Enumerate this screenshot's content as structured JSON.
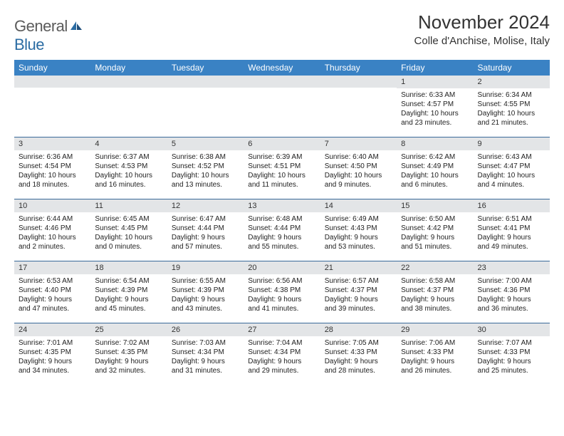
{
  "logo": {
    "general": "General",
    "blue": "Blue"
  },
  "title": "November 2024",
  "location": "Colle d'Anchise, Molise, Italy",
  "colors": {
    "header_bg": "#3a82c4",
    "daynum_bg": "#e3e5e7",
    "row_border": "#3a6a9a",
    "text": "#222222",
    "logo_gray": "#5b5b5b",
    "logo_blue": "#2b6ca3"
  },
  "weekdays": [
    "Sunday",
    "Monday",
    "Tuesday",
    "Wednesday",
    "Thursday",
    "Friday",
    "Saturday"
  ],
  "weeks": [
    [
      null,
      null,
      null,
      null,
      null,
      {
        "n": "1",
        "sr": "Sunrise: 6:33 AM",
        "ss": "Sunset: 4:57 PM",
        "dl1": "Daylight: 10 hours",
        "dl2": "and 23 minutes."
      },
      {
        "n": "2",
        "sr": "Sunrise: 6:34 AM",
        "ss": "Sunset: 4:55 PM",
        "dl1": "Daylight: 10 hours",
        "dl2": "and 21 minutes."
      }
    ],
    [
      {
        "n": "3",
        "sr": "Sunrise: 6:36 AM",
        "ss": "Sunset: 4:54 PM",
        "dl1": "Daylight: 10 hours",
        "dl2": "and 18 minutes."
      },
      {
        "n": "4",
        "sr": "Sunrise: 6:37 AM",
        "ss": "Sunset: 4:53 PM",
        "dl1": "Daylight: 10 hours",
        "dl2": "and 16 minutes."
      },
      {
        "n": "5",
        "sr": "Sunrise: 6:38 AM",
        "ss": "Sunset: 4:52 PM",
        "dl1": "Daylight: 10 hours",
        "dl2": "and 13 minutes."
      },
      {
        "n": "6",
        "sr": "Sunrise: 6:39 AM",
        "ss": "Sunset: 4:51 PM",
        "dl1": "Daylight: 10 hours",
        "dl2": "and 11 minutes."
      },
      {
        "n": "7",
        "sr": "Sunrise: 6:40 AM",
        "ss": "Sunset: 4:50 PM",
        "dl1": "Daylight: 10 hours",
        "dl2": "and 9 minutes."
      },
      {
        "n": "8",
        "sr": "Sunrise: 6:42 AM",
        "ss": "Sunset: 4:49 PM",
        "dl1": "Daylight: 10 hours",
        "dl2": "and 6 minutes."
      },
      {
        "n": "9",
        "sr": "Sunrise: 6:43 AM",
        "ss": "Sunset: 4:47 PM",
        "dl1": "Daylight: 10 hours",
        "dl2": "and 4 minutes."
      }
    ],
    [
      {
        "n": "10",
        "sr": "Sunrise: 6:44 AM",
        "ss": "Sunset: 4:46 PM",
        "dl1": "Daylight: 10 hours",
        "dl2": "and 2 minutes."
      },
      {
        "n": "11",
        "sr": "Sunrise: 6:45 AM",
        "ss": "Sunset: 4:45 PM",
        "dl1": "Daylight: 10 hours",
        "dl2": "and 0 minutes."
      },
      {
        "n": "12",
        "sr": "Sunrise: 6:47 AM",
        "ss": "Sunset: 4:44 PM",
        "dl1": "Daylight: 9 hours",
        "dl2": "and 57 minutes."
      },
      {
        "n": "13",
        "sr": "Sunrise: 6:48 AM",
        "ss": "Sunset: 4:44 PM",
        "dl1": "Daylight: 9 hours",
        "dl2": "and 55 minutes."
      },
      {
        "n": "14",
        "sr": "Sunrise: 6:49 AM",
        "ss": "Sunset: 4:43 PM",
        "dl1": "Daylight: 9 hours",
        "dl2": "and 53 minutes."
      },
      {
        "n": "15",
        "sr": "Sunrise: 6:50 AM",
        "ss": "Sunset: 4:42 PM",
        "dl1": "Daylight: 9 hours",
        "dl2": "and 51 minutes."
      },
      {
        "n": "16",
        "sr": "Sunrise: 6:51 AM",
        "ss": "Sunset: 4:41 PM",
        "dl1": "Daylight: 9 hours",
        "dl2": "and 49 minutes."
      }
    ],
    [
      {
        "n": "17",
        "sr": "Sunrise: 6:53 AM",
        "ss": "Sunset: 4:40 PM",
        "dl1": "Daylight: 9 hours",
        "dl2": "and 47 minutes."
      },
      {
        "n": "18",
        "sr": "Sunrise: 6:54 AM",
        "ss": "Sunset: 4:39 PM",
        "dl1": "Daylight: 9 hours",
        "dl2": "and 45 minutes."
      },
      {
        "n": "19",
        "sr": "Sunrise: 6:55 AM",
        "ss": "Sunset: 4:39 PM",
        "dl1": "Daylight: 9 hours",
        "dl2": "and 43 minutes."
      },
      {
        "n": "20",
        "sr": "Sunrise: 6:56 AM",
        "ss": "Sunset: 4:38 PM",
        "dl1": "Daylight: 9 hours",
        "dl2": "and 41 minutes."
      },
      {
        "n": "21",
        "sr": "Sunrise: 6:57 AM",
        "ss": "Sunset: 4:37 PM",
        "dl1": "Daylight: 9 hours",
        "dl2": "and 39 minutes."
      },
      {
        "n": "22",
        "sr": "Sunrise: 6:58 AM",
        "ss": "Sunset: 4:37 PM",
        "dl1": "Daylight: 9 hours",
        "dl2": "and 38 minutes."
      },
      {
        "n": "23",
        "sr": "Sunrise: 7:00 AM",
        "ss": "Sunset: 4:36 PM",
        "dl1": "Daylight: 9 hours",
        "dl2": "and 36 minutes."
      }
    ],
    [
      {
        "n": "24",
        "sr": "Sunrise: 7:01 AM",
        "ss": "Sunset: 4:35 PM",
        "dl1": "Daylight: 9 hours",
        "dl2": "and 34 minutes."
      },
      {
        "n": "25",
        "sr": "Sunrise: 7:02 AM",
        "ss": "Sunset: 4:35 PM",
        "dl1": "Daylight: 9 hours",
        "dl2": "and 32 minutes."
      },
      {
        "n": "26",
        "sr": "Sunrise: 7:03 AM",
        "ss": "Sunset: 4:34 PM",
        "dl1": "Daylight: 9 hours",
        "dl2": "and 31 minutes."
      },
      {
        "n": "27",
        "sr": "Sunrise: 7:04 AM",
        "ss": "Sunset: 4:34 PM",
        "dl1": "Daylight: 9 hours",
        "dl2": "and 29 minutes."
      },
      {
        "n": "28",
        "sr": "Sunrise: 7:05 AM",
        "ss": "Sunset: 4:33 PM",
        "dl1": "Daylight: 9 hours",
        "dl2": "and 28 minutes."
      },
      {
        "n": "29",
        "sr": "Sunrise: 7:06 AM",
        "ss": "Sunset: 4:33 PM",
        "dl1": "Daylight: 9 hours",
        "dl2": "and 26 minutes."
      },
      {
        "n": "30",
        "sr": "Sunrise: 7:07 AM",
        "ss": "Sunset: 4:33 PM",
        "dl1": "Daylight: 9 hours",
        "dl2": "and 25 minutes."
      }
    ]
  ]
}
